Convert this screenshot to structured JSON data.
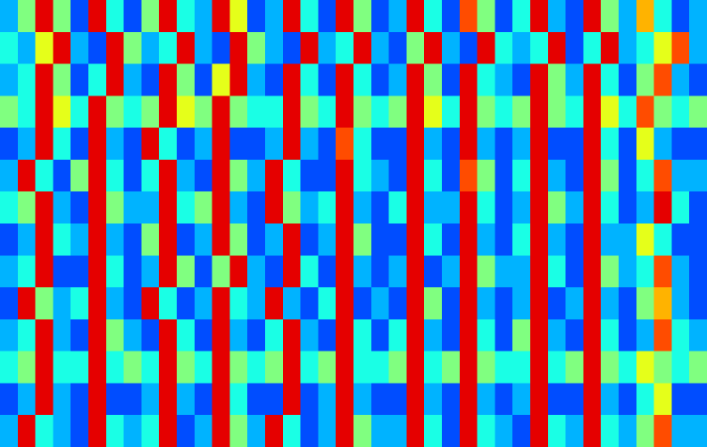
{
  "chart_data": {
    "type": "heatmap",
    "colormap": "jet",
    "zlim": [
      0,
      10
    ],
    "values": [
      [
        3,
        5,
        9,
        5,
        2,
        9,
        4,
        2,
        5,
        9,
        4,
        3,
        9,
        6,
        2,
        3,
        9,
        4,
        2,
        9,
        5,
        2,
        3,
        9,
        4,
        2,
        8,
        5,
        2,
        4,
        9,
        3,
        2,
        9,
        5,
        3,
        7,
        4,
        2,
        3
      ],
      [
        4,
        3,
        6,
        9,
        3,
        2,
        9,
        5,
        3,
        4,
        9,
        3,
        2,
        9,
        5,
        3,
        2,
        9,
        3,
        4,
        9,
        3,
        2,
        5,
        9,
        3,
        2,
        9,
        4,
        3,
        4,
        9,
        2,
        4,
        9,
        3,
        4,
        6,
        8,
        3
      ],
      [
        3,
        4,
        9,
        5,
        2,
        4,
        9,
        3,
        2,
        9,
        5,
        2,
        6,
        9,
        3,
        2,
        9,
        4,
        2,
        9,
        4,
        2,
        3,
        9,
        5,
        2,
        9,
        4,
        3,
        2,
        9,
        5,
        3,
        9,
        4,
        2,
        5,
        8,
        3,
        2
      ],
      [
        5,
        4,
        9,
        6,
        4,
        9,
        5,
        4,
        5,
        9,
        6,
        5,
        9,
        5,
        4,
        4,
        9,
        5,
        4,
        9,
        5,
        4,
        5,
        9,
        6,
        4,
        9,
        5,
        4,
        5,
        9,
        5,
        4,
        9,
        6,
        4,
        8,
        5,
        4,
        5
      ],
      [
        2,
        3,
        9,
        4,
        2,
        9,
        3,
        2,
        9,
        4,
        2,
        3,
        9,
        2,
        2,
        3,
        9,
        3,
        2,
        8,
        4,
        2,
        2,
        9,
        3,
        2,
        9,
        3,
        2,
        3,
        9,
        2,
        2,
        9,
        4,
        2,
        6,
        3,
        2,
        2
      ],
      [
        3,
        9,
        4,
        2,
        5,
        9,
        4,
        2,
        4,
        9,
        3,
        2,
        9,
        5,
        3,
        9,
        4,
        2,
        2,
        9,
        4,
        3,
        2,
        9,
        4,
        2,
        8,
        5,
        2,
        4,
        9,
        3,
        2,
        9,
        5,
        2,
        4,
        8,
        3,
        3
      ],
      [
        4,
        5,
        9,
        3,
        2,
        9,
        5,
        3,
        3,
        9,
        4,
        5,
        9,
        3,
        2,
        9,
        5,
        3,
        4,
        9,
        3,
        2,
        4,
        9,
        3,
        3,
        9,
        4,
        2,
        3,
        9,
        5,
        3,
        9,
        4,
        2,
        3,
        9,
        4,
        2
      ],
      [
        2,
        3,
        9,
        4,
        3,
        9,
        3,
        2,
        5,
        9,
        2,
        3,
        9,
        5,
        2,
        3,
        9,
        2,
        3,
        9,
        5,
        2,
        2,
        9,
        4,
        2,
        9,
        3,
        2,
        4,
        9,
        3,
        2,
        9,
        3,
        3,
        6,
        4,
        2,
        2
      ],
      [
        3,
        4,
        9,
        2,
        2,
        9,
        4,
        2,
        3,
        9,
        5,
        2,
        5,
        9,
        3,
        2,
        9,
        4,
        2,
        9,
        3,
        2,
        3,
        9,
        2,
        3,
        9,
        5,
        3,
        3,
        9,
        4,
        2,
        9,
        5,
        3,
        4,
        8,
        3,
        2
      ],
      [
        2,
        9,
        5,
        3,
        4,
        9,
        3,
        2,
        9,
        4,
        2,
        3,
        9,
        4,
        3,
        9,
        3,
        2,
        4,
        9,
        2,
        3,
        2,
        9,
        5,
        2,
        9,
        3,
        2,
        3,
        9,
        2,
        3,
        9,
        3,
        2,
        5,
        7,
        3,
        2
      ],
      [
        3,
        4,
        9,
        3,
        2,
        9,
        5,
        3,
        2,
        9,
        4,
        2,
        9,
        3,
        2,
        4,
        9,
        3,
        2,
        9,
        4,
        2,
        4,
        9,
        3,
        2,
        9,
        4,
        2,
        5,
        9,
        3,
        2,
        9,
        4,
        2,
        3,
        8,
        4,
        3
      ],
      [
        4,
        5,
        9,
        4,
        4,
        9,
        4,
        5,
        4,
        9,
        5,
        4,
        9,
        5,
        4,
        5,
        9,
        4,
        5,
        9,
        4,
        4,
        5,
        9,
        4,
        5,
        9,
        5,
        4,
        4,
        9,
        4,
        5,
        9,
        5,
        4,
        6,
        5,
        4,
        5
      ],
      [
        2,
        3,
        9,
        3,
        2,
        9,
        2,
        2,
        3,
        9,
        3,
        2,
        9,
        4,
        2,
        2,
        9,
        2,
        3,
        9,
        3,
        2,
        2,
        9,
        3,
        2,
        9,
        3,
        2,
        3,
        9,
        2,
        2,
        9,
        3,
        2,
        4,
        6,
        2,
        2
      ],
      [
        3,
        9,
        4,
        3,
        2,
        9,
        4,
        3,
        4,
        9,
        2,
        3,
        9,
        5,
        3,
        9,
        4,
        2,
        3,
        9,
        5,
        3,
        3,
        9,
        4,
        2,
        9,
        4,
        3,
        2,
        9,
        4,
        3,
        9,
        4,
        3,
        5,
        8,
        3,
        3
      ]
    ]
  }
}
